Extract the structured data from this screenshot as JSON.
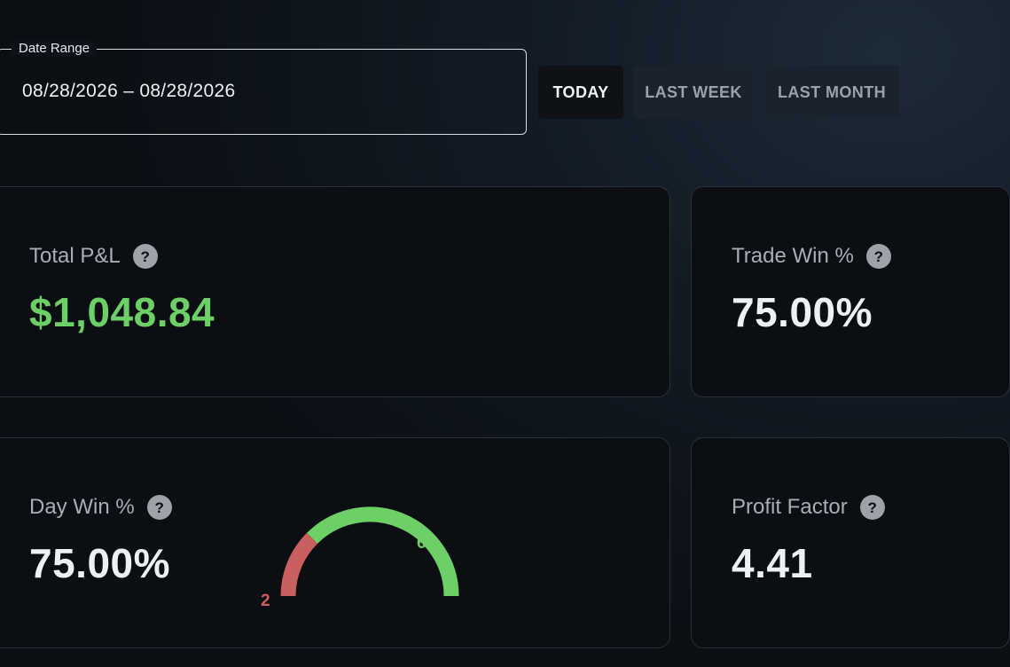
{
  "date_range": {
    "label": "Date Range",
    "value": "08/28/2026 – 08/28/2026"
  },
  "presets": {
    "today": "TODAY",
    "last_week": "LAST WEEK",
    "last_month": "LAST MONTH",
    "active": "today"
  },
  "cards": {
    "total_pnl": {
      "title": "Total P&L",
      "value": "$1,048.84",
      "help": "?"
    },
    "trade_win": {
      "title": "Trade Win %",
      "value": "75.00%",
      "help": "?"
    },
    "day_win": {
      "title": "Day Win %",
      "value": "75.00%",
      "help": "?"
    },
    "profit_factor": {
      "title": "Profit Factor",
      "value": "4.41",
      "help": "?"
    }
  },
  "day_win_gauge": {
    "winning_days": 6,
    "losing_days": 2,
    "win_label": "6",
    "loss_label": "2"
  },
  "colors": {
    "positive": "#6cd067",
    "negative": "#c9605f",
    "background": "#0b0e12"
  }
}
